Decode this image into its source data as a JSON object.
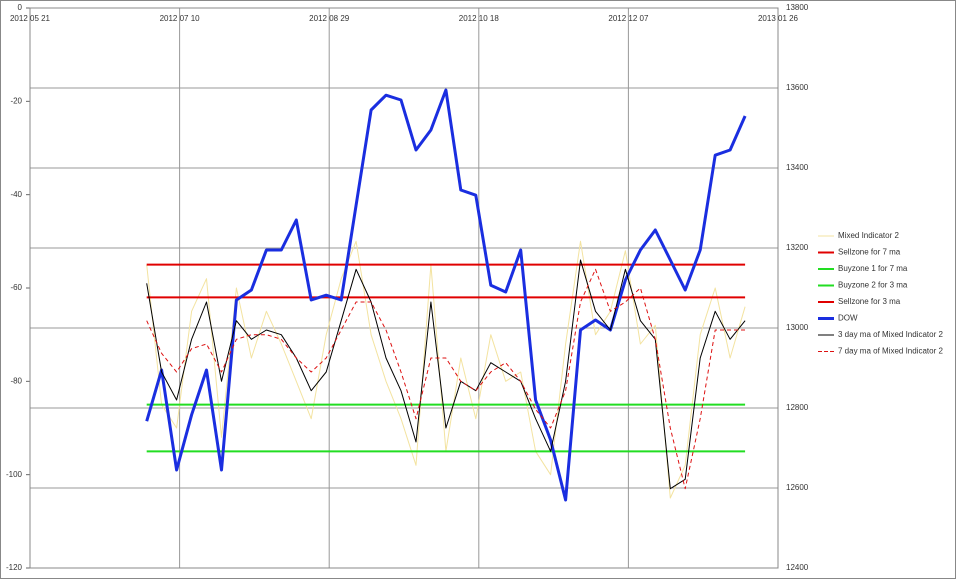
{
  "chart_data": {
    "type": "line",
    "x": [
      "2012-06-29",
      "2012-07-04",
      "2012-07-09",
      "2012-07-14",
      "2012-07-19",
      "2012-07-24",
      "2012-07-29",
      "2012-08-03",
      "2012-08-08",
      "2012-08-13",
      "2012-08-18",
      "2012-08-23",
      "2012-08-28",
      "2012-09-02",
      "2012-09-07",
      "2012-09-12",
      "2012-09-17",
      "2012-09-22",
      "2012-09-27",
      "2012-10-02",
      "2012-10-07",
      "2012-10-12",
      "2012-10-17",
      "2012-10-22",
      "2012-10-27",
      "2012-11-01",
      "2012-11-06",
      "2012-11-11",
      "2012-11-16",
      "2012-11-21",
      "2012-11-26",
      "2012-12-01",
      "2012-12-06",
      "2012-12-11",
      "2012-12-16",
      "2012-12-21",
      "2012-12-26",
      "2012-12-31",
      "2013-01-05",
      "2013-01-10",
      "2013-01-15"
    ],
    "xlim": [
      "2012-05-21",
      "2013-01-26"
    ],
    "xticks": [
      {
        "value": "2012-05-21",
        "label": "2012 05 21"
      },
      {
        "value": "2012-07-10",
        "label": "2012 07 10"
      },
      {
        "value": "2012-08-29",
        "label": "2012 08 29"
      },
      {
        "value": "2012-10-18",
        "label": "2012 10 18"
      },
      {
        "value": "2012-12-07",
        "label": "2012 12 07"
      },
      {
        "value": "2013-01-26",
        "label": "2013 01 26"
      }
    ],
    "ylim": [
      -120,
      0
    ],
    "yticks": [
      0,
      -20,
      -40,
      -60,
      -80,
      -100,
      -120
    ],
    "y2lim": [
      12400,
      13800
    ],
    "y2ticks": [
      13800,
      13600,
      13400,
      13200,
      13000,
      12800,
      12600,
      12400
    ],
    "series": [
      {
        "name": "Mixed Indicator 2",
        "color": "#f3e3a0",
        "width": 1,
        "values": [
          -55,
          -85,
          -90,
          -65,
          -58,
          -92,
          -60,
          -75,
          -65,
          -72,
          -80,
          -88,
          -70,
          -58,
          -50,
          -70,
          -80,
          -88,
          -98,
          -55,
          -95,
          -75,
          -88,
          -70,
          -80,
          -78,
          -95,
          -100,
          -72,
          -50,
          -70,
          -65,
          -52,
          -72,
          -68,
          -105,
          -98,
          -70,
          -60,
          -75,
          -64
        ]
      },
      {
        "name": "Sellzone for 7 ma",
        "color": "#e00000",
        "width": 2,
        "level": -55
      },
      {
        "name": "Buyzone 1 for 7 ma",
        "color": "#22dd22",
        "width": 2,
        "level": -85
      },
      {
        "name": "Buyzone 2 for 3 ma",
        "color": "#22dd22",
        "width": 2,
        "level": -95
      },
      {
        "name": "Sellzone for 3 ma",
        "color": "#e00000",
        "width": 2,
        "level": -62
      },
      {
        "name": "DOW",
        "color": "#1a2ee0",
        "width": 3,
        "axis": "y2",
        "values": [
          12767,
          12895,
          12645,
          12783,
          12895,
          12645,
          13070,
          13095,
          13195,
          13195,
          13270,
          13070,
          13082,
          13070,
          13307,
          13545,
          13582,
          13570,
          13445,
          13495,
          13595,
          13345,
          13332,
          13107,
          13090,
          13195,
          12820,
          12720,
          12570,
          12995,
          13020,
          12995,
          13120,
          13195,
          13245,
          13170,
          13095,
          13195,
          13432,
          13445,
          13530
        ]
      },
      {
        "name": "3 day ma of Mixed Indicator 2",
        "color": "#000000",
        "width": 1,
        "values": [
          -59,
          -78,
          -84,
          -71,
          -63,
          -80,
          -67,
          -71,
          -69,
          -70,
          -75,
          -82,
          -78,
          -67,
          -56,
          -63,
          -75,
          -82,
          -93,
          -63,
          -90,
          -80,
          -82,
          -76,
          -78,
          -80,
          -88,
          -95,
          -80,
          -54,
          -65,
          -69,
          -56,
          -67,
          -71,
          -103,
          -101,
          -75,
          -65,
          -71,
          -67
        ]
      },
      {
        "name": "7 day ma of Mixed Indicator 2",
        "color": "#dd1111",
        "width": 1,
        "dash": true,
        "values": [
          -67,
          -74,
          -78,
          -73,
          -72,
          -78,
          -71,
          -70,
          -70,
          -71,
          -75,
          -78,
          -75,
          -69,
          -63,
          -63,
          -69,
          -78,
          -88,
          -75,
          -75,
          -80,
          -82,
          -78,
          -76,
          -80,
          -86,
          -90,
          -82,
          -63,
          -56,
          -65,
          -63,
          -60,
          -71,
          -90,
          -103,
          -88,
          -69,
          -69,
          -69
        ]
      }
    ],
    "grid": true
  }
}
